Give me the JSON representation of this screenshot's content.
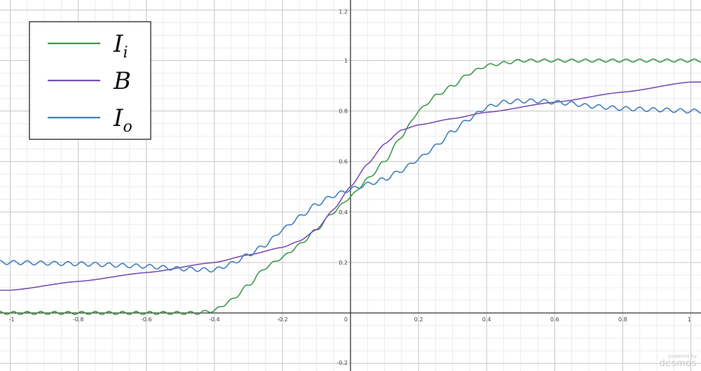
{
  "chart_data": {
    "type": "line",
    "title": "",
    "xlabel": "",
    "ylabel": "",
    "xlim": [
      -1.03,
      1.03
    ],
    "ylim": [
      -0.23,
      1.24
    ],
    "grid": true,
    "legend_position": "top-left",
    "x_ticks": [
      -1,
      -0.8,
      -0.6,
      -0.4,
      -0.2,
      0,
      0.2,
      0.4,
      0.6,
      0.8,
      1
    ],
    "x_tick_labels": [
      "-1",
      "-0.8",
      "-0.6",
      "-0.4",
      "-0.2",
      "0",
      "0.2",
      "0.4",
      "0.6",
      "0.8",
      "1"
    ],
    "y_ticks": [
      -0.2,
      0.2,
      0.4,
      0.6,
      0.8,
      1,
      1.2
    ],
    "y_tick_labels": [
      "-0.2",
      "0.2",
      "0.4",
      "0.6",
      "0.8",
      "1",
      "1.2"
    ],
    "series": [
      {
        "name": "I_i",
        "label_main": "I",
        "label_sub": "i",
        "color": "#3f9a4b",
        "x": [
          -1,
          -0.9,
          -0.8,
          -0.7,
          -0.6,
          -0.5,
          -0.45,
          -0.4,
          -0.35,
          -0.3,
          -0.25,
          -0.2,
          -0.15,
          -0.1,
          -0.05,
          0,
          0.05,
          0.1,
          0.15,
          0.2,
          0.25,
          0.3,
          0.35,
          0.4,
          0.45,
          0.5,
          0.6,
          0.7,
          0.8,
          0.9,
          1
        ],
        "y": [
          0,
          0,
          0,
          0,
          0,
          0,
          0,
          0.01,
          0.05,
          0.11,
          0.18,
          0.22,
          0.27,
          0.33,
          0.4,
          0.46,
          0.53,
          0.6,
          0.7,
          0.8,
          0.86,
          0.9,
          0.95,
          0.98,
          0.99,
          1,
          1,
          1,
          1,
          1,
          1
        ],
        "ripple_amplitude": 0.006,
        "ripple_period": 0.04
      },
      {
        "name": "B",
        "label_main": "B",
        "label_sub": "",
        "color": "#7b4fb5",
        "x": [
          -1,
          -0.8,
          -0.6,
          -0.4,
          -0.3,
          -0.2,
          -0.15,
          -0.1,
          -0.05,
          0,
          0.05,
          0.1,
          0.15,
          0.2,
          0.3,
          0.4,
          0.6,
          0.8,
          1
        ],
        "y": [
          0.09,
          0.125,
          0.16,
          0.2,
          0.23,
          0.26,
          0.285,
          0.33,
          0.41,
          0.5,
          0.59,
          0.67,
          0.725,
          0.745,
          0.77,
          0.795,
          0.835,
          0.875,
          0.915
        ],
        "ripple_amplitude": 0,
        "ripple_period": 0.04
      },
      {
        "name": "I_o",
        "label_main": "I",
        "label_sub": "o",
        "color": "#3f7fbf",
        "x": [
          -1,
          -0.8,
          -0.6,
          -0.5,
          -0.4,
          -0.35,
          -0.3,
          -0.25,
          -0.2,
          -0.15,
          -0.1,
          -0.05,
          0,
          0.05,
          0.1,
          0.15,
          0.2,
          0.25,
          0.3,
          0.35,
          0.4,
          0.45,
          0.5,
          0.55,
          0.6,
          0.65,
          0.7,
          0.8,
          0.9,
          1
        ],
        "y": [
          0.2,
          0.195,
          0.185,
          0.175,
          0.17,
          0.195,
          0.23,
          0.27,
          0.33,
          0.38,
          0.43,
          0.465,
          0.49,
          0.51,
          0.53,
          0.565,
          0.61,
          0.66,
          0.72,
          0.77,
          0.815,
          0.835,
          0.84,
          0.84,
          0.835,
          0.83,
          0.82,
          0.81,
          0.805,
          0.8
        ],
        "ripple_amplitude": 0.008,
        "ripple_period": 0.04
      }
    ]
  },
  "watermark": {
    "powered": "powered by",
    "brand": "desmos"
  }
}
